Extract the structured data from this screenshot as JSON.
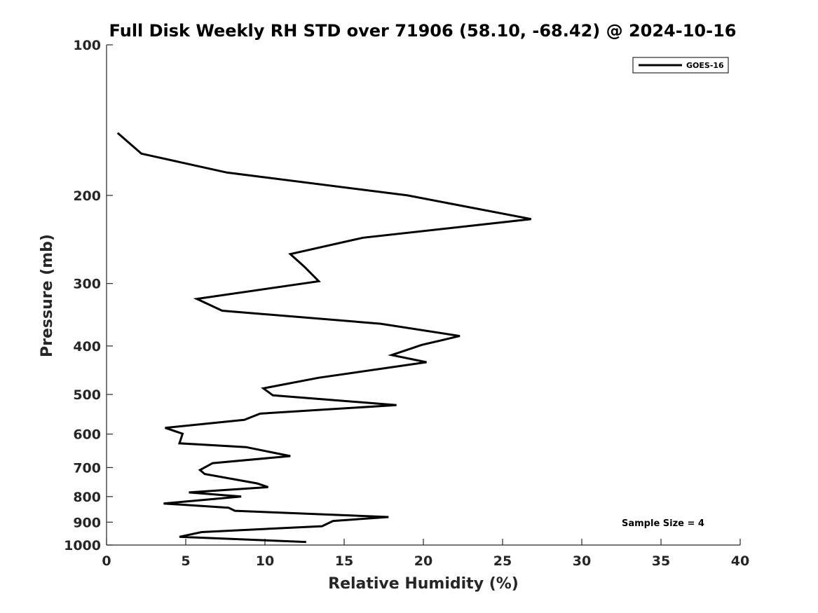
{
  "chart_data": {
    "type": "line",
    "title": "Full Disk Weekly RH STD over 71906 (58.10, -68.42) @ 2024-10-16",
    "xlabel": "Relative Humidity (%)",
    "ylabel": "Pressure (mb)",
    "xlim": [
      0,
      40
    ],
    "ylim": [
      1000,
      100
    ],
    "y_scale": "log",
    "y_reversed": true,
    "grid": false,
    "legend_position": "top-right",
    "x_ticks": [
      0,
      5,
      10,
      15,
      20,
      25,
      30,
      35,
      40
    ],
    "x_tick_labels": [
      "0",
      "5",
      "10",
      "15",
      "20",
      "25",
      "30",
      "35",
      "40"
    ],
    "y_ticks": [
      100,
      200,
      300,
      400,
      500,
      600,
      700,
      800,
      900,
      1000
    ],
    "y_tick_labels": [
      "100",
      "200",
      "300",
      "400",
      "500",
      "600",
      "700",
      "800",
      "900",
      "1000"
    ],
    "series": [
      {
        "name": "GOES-16",
        "color": "#000000",
        "x": [
          0.7,
          2.2,
          7.6,
          19.0,
          26.8,
          16.2,
          11.6,
          12.5,
          13.4,
          5.7,
          7.3,
          17.3,
          22.3,
          19.9,
          18.0,
          20.2,
          13.4,
          9.9,
          10.5,
          18.3,
          9.7,
          8.7,
          3.7,
          4.8,
          4.6,
          8.8,
          11.6,
          6.7,
          5.9,
          6.2,
          9.5,
          10.2,
          5.2,
          8.5,
          3.6,
          7.7,
          8.1,
          17.8,
          14.3,
          13.6,
          6.0,
          4.6,
          12.6
        ],
        "y": [
          150,
          165,
          180,
          200,
          223,
          243,
          262,
          278,
          297,
          322,
          340,
          361,
          382,
          398,
          417,
          431,
          463,
          486,
          502,
          525,
          546,
          562,
          583,
          599,
          626,
          637,
          664,
          686,
          708,
          721,
          753,
          766,
          785,
          800,
          826,
          842,
          854,
          879,
          895,
          917,
          942,
          963,
          986
        ]
      }
    ],
    "annotations": [
      "Sample Size = 4"
    ]
  }
}
